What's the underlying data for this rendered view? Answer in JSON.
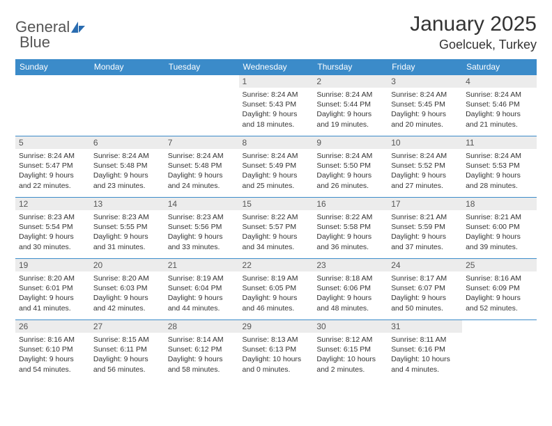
{
  "logo": {
    "word1": "General",
    "word2": "Blue"
  },
  "title": "January 2025",
  "location": "Goelcuek, Turkey",
  "colors": {
    "header_bg": "#3b8bc9",
    "header_fg": "#ffffff",
    "daynum_bg": "#ececec",
    "border": "#3b8bc9",
    "logo_accent": "#2a6cb0"
  },
  "days_of_week": [
    "Sunday",
    "Monday",
    "Tuesday",
    "Wednesday",
    "Thursday",
    "Friday",
    "Saturday"
  ],
  "layout": {
    "first_weekday_index": 3,
    "days_in_month": 31
  },
  "cells": [
    {
      "n": 1,
      "sr": "8:24 AM",
      "ss": "5:43 PM",
      "dh": 9,
      "dm": 18
    },
    {
      "n": 2,
      "sr": "8:24 AM",
      "ss": "5:44 PM",
      "dh": 9,
      "dm": 19
    },
    {
      "n": 3,
      "sr": "8:24 AM",
      "ss": "5:45 PM",
      "dh": 9,
      "dm": 20
    },
    {
      "n": 4,
      "sr": "8:24 AM",
      "ss": "5:46 PM",
      "dh": 9,
      "dm": 21
    },
    {
      "n": 5,
      "sr": "8:24 AM",
      "ss": "5:47 PM",
      "dh": 9,
      "dm": 22
    },
    {
      "n": 6,
      "sr": "8:24 AM",
      "ss": "5:48 PM",
      "dh": 9,
      "dm": 23
    },
    {
      "n": 7,
      "sr": "8:24 AM",
      "ss": "5:48 PM",
      "dh": 9,
      "dm": 24
    },
    {
      "n": 8,
      "sr": "8:24 AM",
      "ss": "5:49 PM",
      "dh": 9,
      "dm": 25
    },
    {
      "n": 9,
      "sr": "8:24 AM",
      "ss": "5:50 PM",
      "dh": 9,
      "dm": 26
    },
    {
      "n": 10,
      "sr": "8:24 AM",
      "ss": "5:52 PM",
      "dh": 9,
      "dm": 27
    },
    {
      "n": 11,
      "sr": "8:24 AM",
      "ss": "5:53 PM",
      "dh": 9,
      "dm": 28
    },
    {
      "n": 12,
      "sr": "8:23 AM",
      "ss": "5:54 PM",
      "dh": 9,
      "dm": 30
    },
    {
      "n": 13,
      "sr": "8:23 AM",
      "ss": "5:55 PM",
      "dh": 9,
      "dm": 31
    },
    {
      "n": 14,
      "sr": "8:23 AM",
      "ss": "5:56 PM",
      "dh": 9,
      "dm": 33
    },
    {
      "n": 15,
      "sr": "8:22 AM",
      "ss": "5:57 PM",
      "dh": 9,
      "dm": 34
    },
    {
      "n": 16,
      "sr": "8:22 AM",
      "ss": "5:58 PM",
      "dh": 9,
      "dm": 36
    },
    {
      "n": 17,
      "sr": "8:21 AM",
      "ss": "5:59 PM",
      "dh": 9,
      "dm": 37
    },
    {
      "n": 18,
      "sr": "8:21 AM",
      "ss": "6:00 PM",
      "dh": 9,
      "dm": 39
    },
    {
      "n": 19,
      "sr": "8:20 AM",
      "ss": "6:01 PM",
      "dh": 9,
      "dm": 41
    },
    {
      "n": 20,
      "sr": "8:20 AM",
      "ss": "6:03 PM",
      "dh": 9,
      "dm": 42
    },
    {
      "n": 21,
      "sr": "8:19 AM",
      "ss": "6:04 PM",
      "dh": 9,
      "dm": 44
    },
    {
      "n": 22,
      "sr": "8:19 AM",
      "ss": "6:05 PM",
      "dh": 9,
      "dm": 46
    },
    {
      "n": 23,
      "sr": "8:18 AM",
      "ss": "6:06 PM",
      "dh": 9,
      "dm": 48
    },
    {
      "n": 24,
      "sr": "8:17 AM",
      "ss": "6:07 PM",
      "dh": 9,
      "dm": 50
    },
    {
      "n": 25,
      "sr": "8:16 AM",
      "ss": "6:09 PM",
      "dh": 9,
      "dm": 52
    },
    {
      "n": 26,
      "sr": "8:16 AM",
      "ss": "6:10 PM",
      "dh": 9,
      "dm": 54
    },
    {
      "n": 27,
      "sr": "8:15 AM",
      "ss": "6:11 PM",
      "dh": 9,
      "dm": 56
    },
    {
      "n": 28,
      "sr": "8:14 AM",
      "ss": "6:12 PM",
      "dh": 9,
      "dm": 58
    },
    {
      "n": 29,
      "sr": "8:13 AM",
      "ss": "6:13 PM",
      "dh": 10,
      "dm": 0
    },
    {
      "n": 30,
      "sr": "8:12 AM",
      "ss": "6:15 PM",
      "dh": 10,
      "dm": 2
    },
    {
      "n": 31,
      "sr": "8:11 AM",
      "ss": "6:16 PM",
      "dh": 10,
      "dm": 4
    }
  ],
  "labels": {
    "sunrise": "Sunrise:",
    "sunset": "Sunset:",
    "daylight": "Daylight:",
    "hours": "hours",
    "and": "and",
    "minutes": "minutes."
  }
}
